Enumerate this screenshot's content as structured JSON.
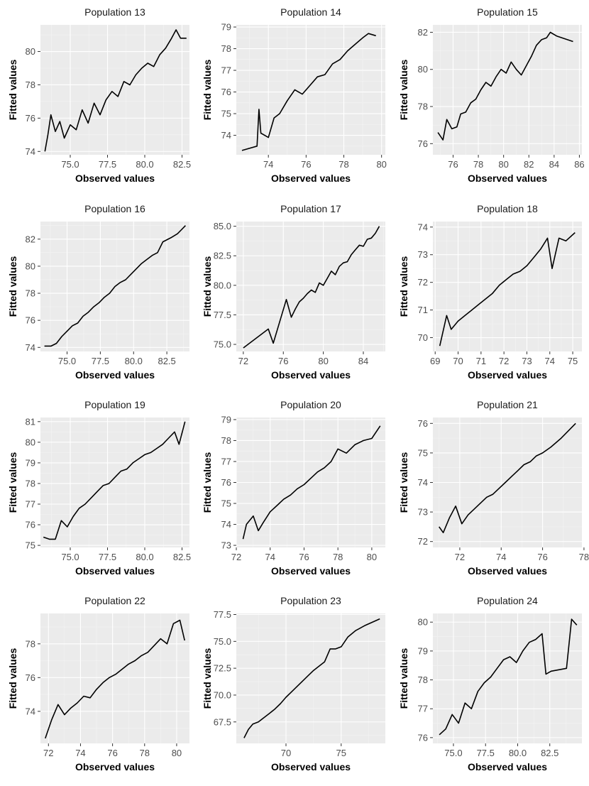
{
  "figure": {
    "background": "#ffffff",
    "panel_background": "#ebebeb",
    "line_color": "#000000"
  },
  "chart_data": [
    {
      "type": "line",
      "title": "Population 13",
      "xlabel": "Observed values",
      "ylabel": "Fitted values",
      "xlim": [
        73.0,
        83.0
      ],
      "ylim": [
        73.8,
        81.6
      ],
      "xticks": [
        75.0,
        77.5,
        80.0,
        82.5
      ],
      "xtick_labels": [
        "75.0",
        "77.5",
        "80.0",
        "82.5"
      ],
      "yticks": [
        74,
        76,
        78,
        80
      ],
      "ytick_labels": [
        "74",
        "76",
        "78",
        "80"
      ],
      "x": [
        73.3,
        73.5,
        73.7,
        74.0,
        74.3,
        74.6,
        75.0,
        75.4,
        75.8,
        76.2,
        76.6,
        77.0,
        77.4,
        77.8,
        78.2,
        78.6,
        79.0,
        79.4,
        79.8,
        80.2,
        80.6,
        81.0,
        81.4,
        81.8,
        82.1,
        82.4,
        82.8
      ],
      "y": [
        74.0,
        75.0,
        76.2,
        75.2,
        75.8,
        74.8,
        75.6,
        75.3,
        76.5,
        75.7,
        76.9,
        76.2,
        77.1,
        77.6,
        77.3,
        78.2,
        78.0,
        78.6,
        79.0,
        79.3,
        79.1,
        79.8,
        80.2,
        80.8,
        81.3,
        80.8,
        80.8
      ]
    },
    {
      "type": "line",
      "title": "Population 14",
      "xlabel": "Observed values",
      "ylabel": "Fitted values",
      "xlim": [
        72.3,
        80.2
      ],
      "ylim": [
        73.1,
        79.1
      ],
      "xticks": [
        74,
        76,
        78,
        80
      ],
      "xtick_labels": [
        "74",
        "76",
        "78",
        "80"
      ],
      "yticks": [
        74,
        75,
        76,
        77,
        78,
        79
      ],
      "ytick_labels": [
        "74",
        "75",
        "76",
        "77",
        "78",
        "79"
      ],
      "x": [
        72.6,
        73.4,
        73.5,
        73.6,
        74.0,
        74.3,
        74.6,
        75.0,
        75.4,
        75.8,
        76.2,
        76.6,
        77.0,
        77.4,
        77.8,
        78.2,
        78.6,
        79.0,
        79.3,
        79.7
      ],
      "y": [
        73.3,
        73.5,
        75.2,
        74.1,
        73.9,
        74.8,
        75.0,
        75.6,
        76.1,
        75.9,
        76.3,
        76.7,
        76.8,
        77.3,
        77.5,
        77.9,
        78.2,
        78.5,
        78.7,
        78.6
      ]
    },
    {
      "type": "line",
      "title": "Population 15",
      "xlabel": "Observed values",
      "ylabel": "Fitted values",
      "xlim": [
        74.4,
        86.2
      ],
      "ylim": [
        75.4,
        82.4
      ],
      "xticks": [
        76,
        78,
        80,
        82,
        84,
        86
      ],
      "xtick_labels": [
        "76",
        "78",
        "80",
        "82",
        "84",
        "86"
      ],
      "yticks": [
        76,
        78,
        80,
        82
      ],
      "ytick_labels": [
        "76",
        "78",
        "80",
        "82"
      ],
      "x": [
        74.8,
        75.2,
        75.5,
        75.9,
        76.3,
        76.6,
        77.0,
        77.4,
        77.8,
        78.2,
        78.6,
        79.0,
        79.4,
        79.8,
        80.2,
        80.6,
        81.0,
        81.4,
        81.8,
        82.2,
        82.6,
        83.0,
        83.4,
        83.7,
        84.2,
        85.5
      ],
      "y": [
        76.6,
        76.2,
        77.3,
        76.8,
        76.9,
        77.6,
        77.7,
        78.2,
        78.4,
        78.9,
        79.3,
        79.1,
        79.6,
        80.0,
        79.8,
        80.4,
        80.0,
        79.7,
        80.2,
        80.7,
        81.3,
        81.6,
        81.7,
        82.0,
        81.8,
        81.5
      ]
    },
    {
      "type": "line",
      "title": "Population 16",
      "xlabel": "Observed values",
      "ylabel": "Fitted values",
      "xlim": [
        73.0,
        84.2
      ],
      "ylim": [
        73.7,
        83.3
      ],
      "xticks": [
        75.0,
        77.5,
        80.0,
        82.5
      ],
      "xtick_labels": [
        "75.0",
        "77.5",
        "80.0",
        "82.5"
      ],
      "yticks": [
        74,
        76,
        78,
        80,
        82
      ],
      "ytick_labels": [
        "74",
        "76",
        "78",
        "80",
        "82"
      ],
      "x": [
        73.3,
        73.8,
        74.2,
        74.6,
        75.0,
        75.4,
        75.8,
        76.2,
        76.6,
        77.0,
        77.4,
        77.8,
        78.2,
        78.6,
        79.0,
        79.4,
        79.8,
        80.2,
        80.6,
        81.0,
        81.4,
        81.8,
        82.2,
        82.8,
        83.3,
        83.9
      ],
      "y": [
        74.1,
        74.1,
        74.3,
        74.8,
        75.2,
        75.6,
        75.8,
        76.3,
        76.6,
        77.0,
        77.3,
        77.7,
        78.0,
        78.5,
        78.8,
        79.0,
        79.4,
        79.8,
        80.2,
        80.5,
        80.8,
        81.0,
        81.8,
        82.1,
        82.4,
        83.0
      ]
    },
    {
      "type": "line",
      "title": "Population 17",
      "xlabel": "Observed values",
      "ylabel": "Fitted values",
      "xlim": [
        71.3,
        86.2
      ],
      "ylim": [
        74.4,
        85.4
      ],
      "xticks": [
        72,
        76,
        80,
        84
      ],
      "xtick_labels": [
        "72",
        "76",
        "80",
        "84"
      ],
      "yticks": [
        75.0,
        77.5,
        80.0,
        82.5,
        85.0
      ],
      "ytick_labels": [
        "75.0",
        "77.5",
        "80.0",
        "82.5",
        "85.0"
      ],
      "x": [
        72.0,
        74.5,
        75.0,
        76.3,
        76.8,
        77.2,
        77.6,
        78.0,
        78.4,
        78.8,
        79.2,
        79.6,
        80.0,
        80.4,
        80.8,
        81.2,
        81.6,
        82.0,
        82.4,
        82.8,
        83.2,
        83.6,
        84.0,
        84.4,
        84.8,
        85.2,
        85.6
      ],
      "y": [
        74.7,
        76.3,
        75.1,
        78.8,
        77.3,
        78.0,
        78.6,
        78.9,
        79.3,
        79.6,
        79.4,
        80.2,
        80.0,
        80.6,
        81.2,
        80.9,
        81.6,
        81.9,
        82.0,
        82.6,
        83.0,
        83.4,
        83.3,
        83.9,
        84.0,
        84.4,
        85.0
      ]
    },
    {
      "type": "line",
      "title": "Population 18",
      "xlabel": "Observed values",
      "ylabel": "Fitted values",
      "xlim": [
        68.9,
        75.4
      ],
      "ylim": [
        69.5,
        74.2
      ],
      "xticks": [
        69,
        70,
        71,
        72,
        73,
        74,
        75
      ],
      "xtick_labels": [
        "69",
        "70",
        "71",
        "72",
        "73",
        "74",
        "75"
      ],
      "yticks": [
        70,
        71,
        72,
        73,
        74
      ],
      "ytick_labels": [
        "70",
        "71",
        "72",
        "73",
        "74"
      ],
      "x": [
        69.2,
        69.5,
        69.7,
        70.0,
        70.3,
        70.6,
        70.9,
        71.2,
        71.5,
        71.8,
        72.1,
        72.4,
        72.7,
        73.0,
        73.3,
        73.6,
        73.9,
        74.1,
        74.4,
        74.7,
        75.1
      ],
      "y": [
        69.7,
        70.8,
        70.3,
        70.6,
        70.8,
        71.0,
        71.2,
        71.4,
        71.6,
        71.9,
        72.1,
        72.3,
        72.4,
        72.6,
        72.9,
        73.2,
        73.6,
        72.5,
        73.6,
        73.5,
        73.8
      ]
    },
    {
      "type": "line",
      "title": "Population 19",
      "xlabel": "Observed values",
      "ylabel": "Fitted values",
      "xlim": [
        73.0,
        83.0
      ],
      "ylim": [
        74.9,
        81.2
      ],
      "xticks": [
        75.0,
        77.5,
        80.0,
        82.5
      ],
      "xtick_labels": [
        "75.0",
        "77.5",
        "80.0",
        "82.5"
      ],
      "yticks": [
        75,
        76,
        77,
        78,
        79,
        80,
        81
      ],
      "ytick_labels": [
        "75",
        "76",
        "77",
        "78",
        "79",
        "80",
        "81"
      ],
      "x": [
        73.2,
        73.6,
        74.0,
        74.4,
        74.8,
        75.2,
        75.6,
        76.0,
        76.4,
        76.8,
        77.2,
        77.6,
        78.0,
        78.4,
        78.8,
        79.2,
        79.6,
        80.0,
        80.4,
        80.8,
        81.2,
        81.6,
        82.0,
        82.3,
        82.7
      ],
      "y": [
        75.4,
        75.3,
        75.3,
        76.2,
        75.9,
        76.4,
        76.8,
        77.0,
        77.3,
        77.6,
        77.9,
        78.0,
        78.3,
        78.6,
        78.7,
        79.0,
        79.2,
        79.4,
        79.5,
        79.7,
        79.9,
        80.2,
        80.5,
        79.9,
        81.0
      ]
    },
    {
      "type": "line",
      "title": "Population 20",
      "xlabel": "Observed values",
      "ylabel": "Fitted values",
      "xlim": [
        72.0,
        80.8
      ],
      "ylim": [
        72.9,
        79.1
      ],
      "xticks": [
        72,
        74,
        76,
        78,
        80
      ],
      "xtick_labels": [
        "72",
        "74",
        "76",
        "78",
        "80"
      ],
      "yticks": [
        73,
        74,
        75,
        76,
        77,
        78,
        79
      ],
      "ytick_labels": [
        "73",
        "74",
        "75",
        "76",
        "77",
        "78",
        "79"
      ],
      "x": [
        72.4,
        72.6,
        73.0,
        73.3,
        73.6,
        74.0,
        74.4,
        74.8,
        75.2,
        75.6,
        76.0,
        76.4,
        76.8,
        77.2,
        77.6,
        78.0,
        78.5,
        79.0,
        79.5,
        80.0,
        80.5
      ],
      "y": [
        73.3,
        74.0,
        74.4,
        73.7,
        74.1,
        74.6,
        74.9,
        75.2,
        75.4,
        75.7,
        75.9,
        76.2,
        76.5,
        76.7,
        77.0,
        77.6,
        77.4,
        77.8,
        78.0,
        78.1,
        78.7
      ]
    },
    {
      "type": "line",
      "title": "Population 21",
      "xlabel": "Observed values",
      "ylabel": "Fitted values",
      "xlim": [
        70.7,
        77.9
      ],
      "ylim": [
        71.8,
        76.2
      ],
      "xticks": [
        72,
        74,
        76,
        78
      ],
      "xtick_labels": [
        "72",
        "74",
        "76",
        "78"
      ],
      "yticks": [
        72,
        73,
        74,
        75,
        76
      ],
      "ytick_labels": [
        "72",
        "73",
        "74",
        "75",
        "76"
      ],
      "x": [
        71.0,
        71.2,
        71.5,
        71.8,
        72.1,
        72.4,
        72.7,
        73.0,
        73.3,
        73.6,
        73.9,
        74.2,
        74.5,
        74.8,
        75.1,
        75.4,
        75.7,
        76.0,
        76.4,
        76.9,
        77.6
      ],
      "y": [
        72.5,
        72.3,
        72.8,
        73.2,
        72.6,
        72.9,
        73.1,
        73.3,
        73.5,
        73.6,
        73.8,
        74.0,
        74.2,
        74.4,
        74.6,
        74.7,
        74.9,
        75.0,
        75.2,
        75.5,
        76.0
      ]
    },
    {
      "type": "line",
      "title": "Population 22",
      "xlabel": "Observed values",
      "ylabel": "Fitted values",
      "xlim": [
        71.5,
        80.8
      ],
      "ylim": [
        72.1,
        79.8
      ],
      "xticks": [
        72,
        74,
        76,
        78,
        80
      ],
      "xtick_labels": [
        "72",
        "74",
        "76",
        "78",
        "80"
      ],
      "yticks": [
        74,
        76,
        78
      ],
      "ytick_labels": [
        "74",
        "76",
        "78"
      ],
      "x": [
        71.8,
        72.2,
        72.6,
        73.0,
        73.4,
        73.8,
        74.2,
        74.6,
        75.0,
        75.4,
        75.8,
        76.2,
        76.6,
        77.0,
        77.4,
        77.8,
        78.2,
        78.6,
        79.0,
        79.4,
        79.8,
        80.2,
        80.5
      ],
      "y": [
        72.4,
        73.5,
        74.4,
        73.8,
        74.2,
        74.5,
        74.9,
        74.8,
        75.3,
        75.7,
        76.0,
        76.2,
        76.5,
        76.8,
        77.0,
        77.3,
        77.5,
        77.9,
        78.3,
        78.0,
        79.2,
        79.4,
        78.2
      ]
    },
    {
      "type": "line",
      "title": "Population 23",
      "xlabel": "Observed values",
      "ylabel": "Fitted values",
      "xlim": [
        65.5,
        79.0
      ],
      "ylim": [
        65.5,
        77.6
      ],
      "xticks": [
        70,
        75
      ],
      "xtick_labels": [
        "70",
        "75"
      ],
      "yticks": [
        67.5,
        70.0,
        72.5,
        75.0,
        77.5
      ],
      "ytick_labels": [
        "67.5",
        "70.0",
        "72.5",
        "75.0",
        "77.5"
      ],
      "x": [
        66.2,
        66.6,
        67.0,
        67.5,
        68.0,
        68.5,
        69.0,
        69.5,
        70.0,
        70.5,
        71.0,
        71.5,
        72.0,
        72.5,
        73.0,
        73.5,
        74.0,
        74.5,
        75.0,
        75.6,
        76.3,
        77.2,
        78.5
      ],
      "y": [
        66.0,
        66.8,
        67.3,
        67.5,
        67.9,
        68.3,
        68.7,
        69.2,
        69.8,
        70.3,
        70.8,
        71.3,
        71.8,
        72.3,
        72.7,
        73.1,
        74.3,
        74.3,
        74.5,
        75.4,
        76.0,
        76.5,
        77.1
      ]
    },
    {
      "type": "line",
      "title": "Population 24",
      "xlabel": "Observed values",
      "ylabel": "Fitted values",
      "xlim": [
        73.4,
        85.0
      ],
      "ylim": [
        75.8,
        80.3
      ],
      "xticks": [
        75.0,
        77.5,
        80.0,
        82.5
      ],
      "xtick_labels": [
        "75.0",
        "77.5",
        "80.0",
        "82.5"
      ],
      "yticks": [
        76,
        77,
        78,
        79,
        80
      ],
      "ytick_labels": [
        "76",
        "77",
        "78",
        "79",
        "80"
      ],
      "x": [
        73.9,
        74.4,
        74.9,
        75.4,
        75.9,
        76.4,
        76.9,
        77.4,
        77.9,
        78.4,
        78.9,
        79.4,
        79.9,
        80.4,
        80.9,
        81.4,
        81.9,
        82.2,
        82.6,
        83.8,
        84.2,
        84.6
      ],
      "y": [
        76.1,
        76.3,
        76.8,
        76.5,
        77.2,
        77.0,
        77.6,
        77.9,
        78.1,
        78.4,
        78.7,
        78.8,
        78.6,
        79.0,
        79.3,
        79.4,
        79.6,
        78.2,
        78.3,
        78.4,
        80.1,
        79.9
      ]
    }
  ]
}
